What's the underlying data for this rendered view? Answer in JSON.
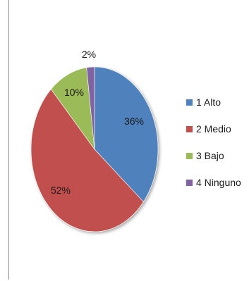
{
  "chart_data": {
    "type": "pie",
    "categories": [
      "1 Alto",
      "2 Medio",
      "3 Bajo",
      "4 Ninguno"
    ],
    "values": [
      36,
      52,
      10,
      2
    ],
    "labels": [
      "36%",
      "52%",
      "10%",
      "2%"
    ],
    "colors": [
      "#4f81bd",
      "#c0504d",
      "#9bbb59",
      "#8064a2"
    ],
    "legend_placement": "right"
  }
}
